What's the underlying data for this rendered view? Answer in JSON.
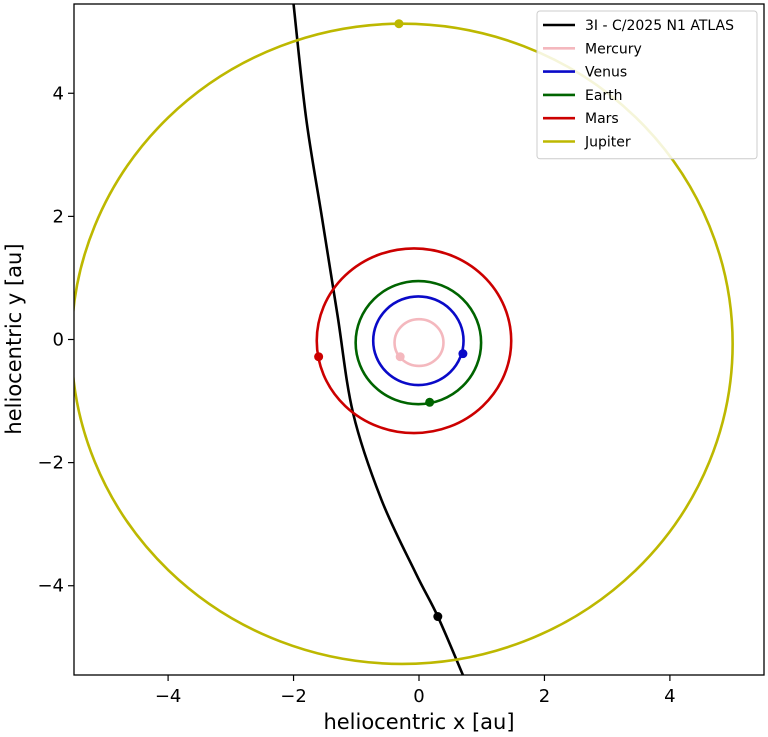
{
  "chart_data": {
    "type": "line",
    "title": "",
    "xlabel": "heliocentric x [au]",
    "ylabel": "heliocentric y [au]",
    "xlim": [
      -5.5,
      5.5
    ],
    "ylim": [
      -5.45,
      5.45
    ],
    "xticks": [
      -4,
      -2,
      0,
      2,
      4
    ],
    "yticks": [
      -4,
      -2,
      0,
      2,
      4
    ],
    "xtick_labels": [
      "−4",
      "−2",
      "0",
      "2",
      "4"
    ],
    "ytick_labels": [
      "−4",
      "−2",
      "0",
      "2",
      "4"
    ],
    "grid": false,
    "legend_position": "top-right",
    "series": [
      {
        "name": "3I - C/2025 N1 ATLAS",
        "color": "#000000",
        "kind": "trajectory",
        "points": [
          [
            -2.0,
            5.45
          ],
          [
            -1.8,
            3.6
          ],
          [
            -1.55,
            2.0
          ],
          [
            -1.3,
            0.4
          ],
          [
            -1.05,
            -1.2
          ],
          [
            -0.6,
            -2.6
          ],
          [
            -0.05,
            -3.8
          ],
          [
            0.3,
            -4.5
          ],
          [
            0.7,
            -5.45
          ]
        ],
        "marker": [
          0.3,
          -4.5
        ]
      },
      {
        "name": "Mercury",
        "color": "#f4b8be",
        "kind": "orbit",
        "center": [
          0,
          -0.05
        ],
        "rx": 0.39,
        "ry": 0.38,
        "marker": [
          -0.3,
          -0.28
        ]
      },
      {
        "name": "Venus",
        "color": "#0a0ac8",
        "kind": "orbit",
        "center": [
          -0.01,
          -0.02
        ],
        "rx": 0.72,
        "ry": 0.72,
        "marker": [
          0.7,
          -0.23
        ]
      },
      {
        "name": "Earth",
        "color": "#006400",
        "kind": "orbit",
        "center": [
          -0.01,
          -0.05
        ],
        "rx": 1.0,
        "ry": 1.0,
        "marker": [
          0.17,
          -1.02
        ]
      },
      {
        "name": "Mars",
        "color": "#cc0000",
        "kind": "orbit",
        "center": [
          -0.08,
          -0.02
        ],
        "rx": 1.55,
        "ry": 1.5,
        "marker": [
          -1.6,
          -0.28
        ]
      },
      {
        "name": "Jupiter",
        "color": "#bdb800",
        "kind": "orbit",
        "center": [
          -0.27,
          -0.07
        ],
        "rx": 5.27,
        "ry": 5.2,
        "marker": [
          -0.32,
          5.13
        ]
      }
    ]
  }
}
